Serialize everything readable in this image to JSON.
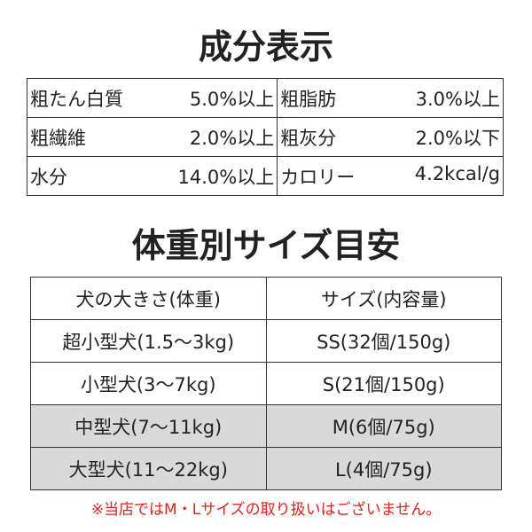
{
  "composition": {
    "title": "成分表示",
    "rows": [
      [
        {
          "label": "粗たん白質",
          "value": "5.0%以上"
        },
        {
          "label": "粗脂肪",
          "value": "3.0%以上"
        }
      ],
      [
        {
          "label": "粗繊維",
          "value": "2.0%以上"
        },
        {
          "label": "粗灰分",
          "value": "2.0%以下"
        }
      ],
      [
        {
          "label": "水分",
          "value": "14.0%以上"
        },
        {
          "label": "カロリー",
          "value": "4.2kcal/g"
        }
      ]
    ]
  },
  "size_guide": {
    "title": "体重別サイズ目安",
    "header": [
      "犬の大きさ(体重)",
      "サイズ(内容量)"
    ],
    "rows": [
      [
        "超小型犬(1.5〜3kg)",
        "SS(32個/150g)"
      ],
      [
        "小型犬(3〜7kg)",
        "S(21個/150g)"
      ],
      [
        "中型犬(7〜11kg)",
        "M(6個/75g)"
      ],
      [
        "大型犬(11〜22kg)",
        "L(4個/75g)"
      ]
    ]
  },
  "note": "※当店ではM・Lサイズの取り扱いはございません。"
}
